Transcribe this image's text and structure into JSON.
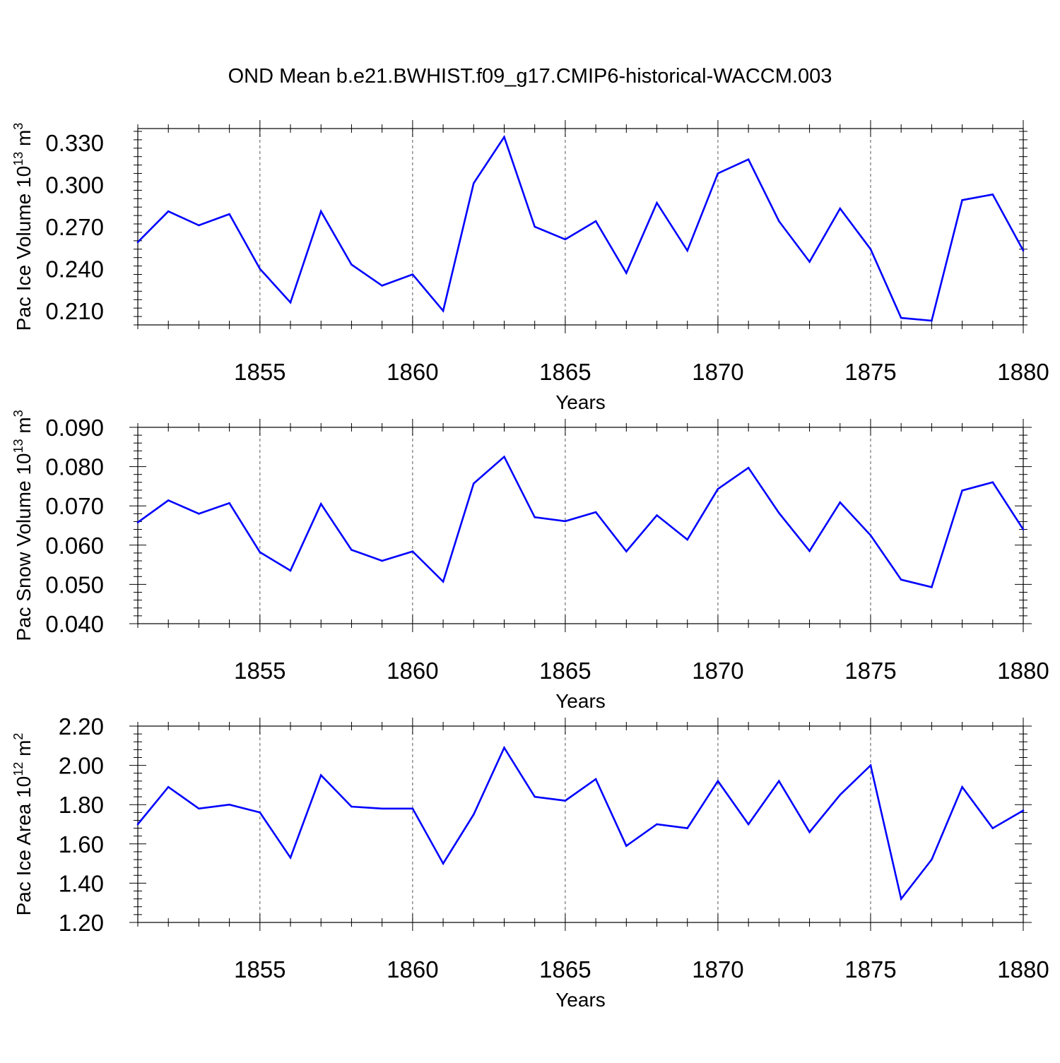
{
  "title": "OND Mean b.e21.BWHIST.f09_g17.CMIP6-historical-WACCM.003",
  "colors": {
    "line": "#0000ff",
    "axis": "#000000",
    "grid": "#555555"
  },
  "chart_data": [
    {
      "type": "line",
      "ylabel": "Pac Ice Volume 10",
      "ylabel_exp": "13",
      "ylabel_unit": " m",
      "ylabel_unit_exp": "3",
      "xlabel": "Years",
      "xlim": [
        1851,
        1880
      ],
      "ylim": [
        0.2,
        0.34
      ],
      "yticks": [
        0.21,
        0.24,
        0.27,
        0.3,
        0.33
      ],
      "ytick_labels": [
        "0.210",
        "0.240",
        "0.270",
        "0.300",
        "0.330"
      ],
      "xticks": [
        1855,
        1860,
        1865,
        1870,
        1875,
        1880
      ],
      "xtick_labels": [
        "1855",
        "1860",
        "1865",
        "1870",
        "1875",
        "1880"
      ],
      "grid": "vertical dashed at x ticks",
      "x": [
        1851,
        1852,
        1853,
        1854,
        1855,
        1856,
        1857,
        1858,
        1859,
        1860,
        1861,
        1862,
        1863,
        1864,
        1865,
        1866,
        1867,
        1868,
        1869,
        1870,
        1871,
        1872,
        1873,
        1874,
        1875,
        1876,
        1877,
        1878,
        1879,
        1880
      ],
      "values": [
        0.259,
        0.281,
        0.271,
        0.279,
        0.24,
        0.216,
        0.281,
        0.243,
        0.228,
        0.236,
        0.21,
        0.301,
        0.334,
        0.27,
        0.261,
        0.274,
        0.237,
        0.287,
        0.253,
        0.308,
        0.318,
        0.274,
        0.245,
        0.283,
        0.254,
        0.205,
        0.203,
        0.289,
        0.293,
        0.253
      ]
    },
    {
      "type": "line",
      "ylabel": "Pac Snow Volume 10",
      "ylabel_exp": "13",
      "ylabel_unit": " m",
      "ylabel_unit_exp": "3",
      "xlabel": "Years",
      "xlim": [
        1851,
        1880
      ],
      "ylim": [
        0.04,
        0.09
      ],
      "yticks": [
        0.04,
        0.05,
        0.06,
        0.07,
        0.08,
        0.09
      ],
      "ytick_labels": [
        "0.040",
        "0.050",
        "0.060",
        "0.070",
        "0.080",
        "0.090"
      ],
      "xticks": [
        1855,
        1860,
        1865,
        1870,
        1875,
        1880
      ],
      "xtick_labels": [
        "1855",
        "1860",
        "1865",
        "1870",
        "1875",
        "1880"
      ],
      "grid": "vertical dashed at x ticks",
      "x": [
        1851,
        1852,
        1853,
        1854,
        1855,
        1856,
        1857,
        1858,
        1859,
        1860,
        1861,
        1862,
        1863,
        1864,
        1865,
        1866,
        1867,
        1868,
        1869,
        1870,
        1871,
        1872,
        1873,
        1874,
        1875,
        1876,
        1877,
        1878,
        1879,
        1880
      ],
      "values": [
        0.0658,
        0.0714,
        0.068,
        0.0707,
        0.0582,
        0.0535,
        0.0705,
        0.0588,
        0.056,
        0.0584,
        0.0507,
        0.0757,
        0.0825,
        0.0671,
        0.0661,
        0.0684,
        0.0584,
        0.0676,
        0.0614,
        0.0743,
        0.0797,
        0.0682,
        0.0585,
        0.0709,
        0.0625,
        0.0512,
        0.0493,
        0.0739,
        0.076,
        0.064
      ]
    },
    {
      "type": "line",
      "ylabel": "Pac Ice Area 10",
      "ylabel_exp": "12",
      "ylabel_unit": " m",
      "ylabel_unit_exp": "2",
      "xlabel": "Years",
      "xlim": [
        1851,
        1880
      ],
      "ylim": [
        1.2,
        2.2
      ],
      "yticks": [
        1.2,
        1.4,
        1.6,
        1.8,
        2.0,
        2.2
      ],
      "ytick_labels": [
        "1.20",
        "1.40",
        "1.60",
        "1.80",
        "2.00",
        "2.20"
      ],
      "xticks": [
        1855,
        1860,
        1865,
        1870,
        1875,
        1880
      ],
      "xtick_labels": [
        "1855",
        "1860",
        "1865",
        "1870",
        "1875",
        "1880"
      ],
      "grid": "vertical dashed at x ticks",
      "x": [
        1851,
        1852,
        1853,
        1854,
        1855,
        1856,
        1857,
        1858,
        1859,
        1860,
        1861,
        1862,
        1863,
        1864,
        1865,
        1866,
        1867,
        1868,
        1869,
        1870,
        1871,
        1872,
        1873,
        1874,
        1875,
        1876,
        1877,
        1878,
        1879,
        1880
      ],
      "values": [
        1.7,
        1.89,
        1.78,
        1.8,
        1.76,
        1.53,
        1.95,
        1.79,
        1.78,
        1.78,
        1.5,
        1.75,
        2.09,
        1.84,
        1.82,
        1.93,
        1.59,
        1.7,
        1.68,
        1.92,
        1.7,
        1.92,
        1.66,
        1.85,
        2.0,
        1.32,
        1.52,
        1.89,
        1.68,
        1.77
      ]
    }
  ]
}
